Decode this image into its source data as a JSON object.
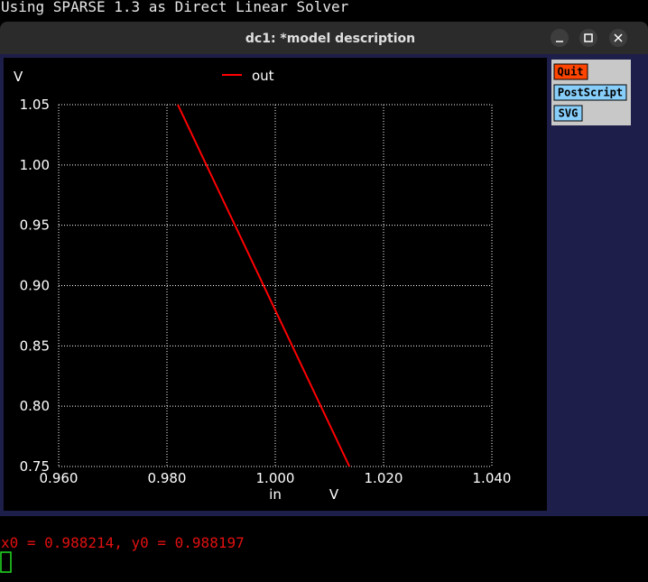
{
  "terminal": {
    "lines": [
      "Using SPARSE 1.3 as Direct Linear Solver"
    ],
    "status": "x0 = 0.988214, y0 = 0.988197"
  },
  "window": {
    "title": "dc1: *model description",
    "buttons": [
      "Quit",
      "PostScript",
      "SVG"
    ]
  },
  "chart_data": {
    "type": "line",
    "y_unit": "V",
    "x_label": "in",
    "x_unit": "V",
    "x": [
      0.982,
      1.0137
    ],
    "series": [
      {
        "name": "out",
        "color": "#ff0000",
        "values": [
          1.05,
          0.75
        ]
      }
    ],
    "xlim": [
      0.96,
      1.04
    ],
    "xticks": [
      {
        "value": 0.96,
        "label": "0.960"
      },
      {
        "value": 0.98,
        "label": "0.980"
      },
      {
        "value": 1.0,
        "label": "1.000"
      },
      {
        "value": 1.02,
        "label": "1.020"
      },
      {
        "value": 1.04,
        "label": "1.040"
      }
    ],
    "ylim": [
      0.75,
      1.05
    ],
    "yticks": [
      0.75,
      {
        "value": 0.8,
        "label": "0.80"
      },
      0.85,
      {
        "value": 0.9,
        "label": "0.90"
      },
      0.95,
      {
        "value": 1.0,
        "label": "1.00"
      },
      1.05
    ],
    "grid": true
  }
}
